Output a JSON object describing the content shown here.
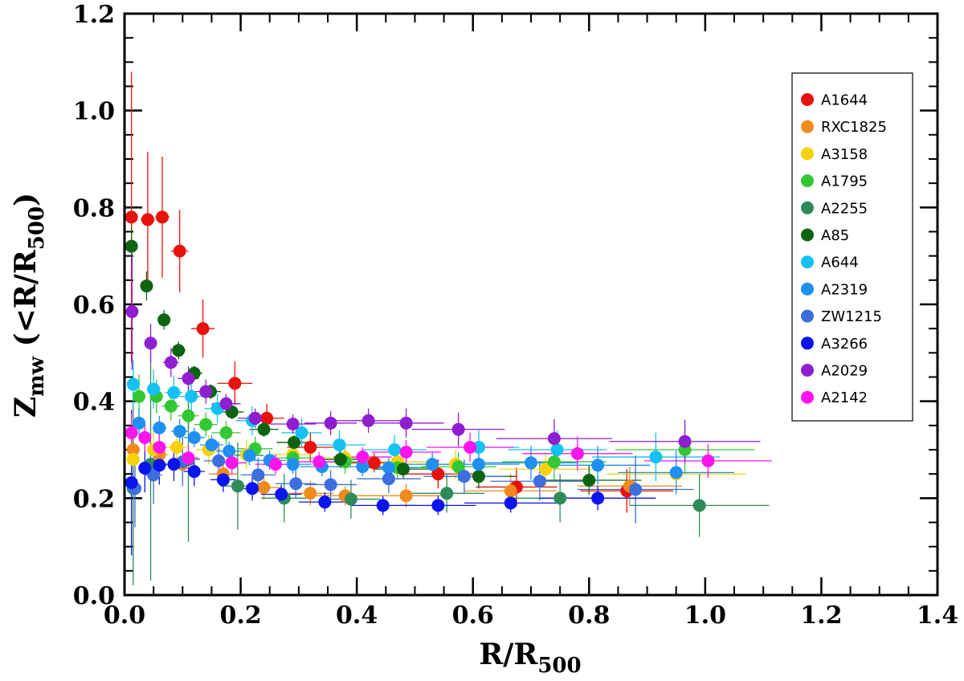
{
  "chart_data": {
    "type": "scatter",
    "xlabel": "R/R",
    "xlabel_sub": "500",
    "ylabel_main": "Z",
    "ylabel_sub": "mw",
    "ylabel_rest": " (<R/R",
    "ylabel_sub2": "500",
    "ylabel_close": ")",
    "xlim": [
      0.0,
      1.4
    ],
    "ylim": [
      0.0,
      1.2
    ],
    "xticks": [
      "0.0",
      "0.2",
      "0.4",
      "0.6",
      "0.8",
      "1.0",
      "1.2",
      "1.4"
    ],
    "yticks": [
      "0.0",
      "0.2",
      "0.4",
      "0.6",
      "0.8",
      "1.0",
      "1.2"
    ],
    "legend_position": "upper-right",
    "series": [
      {
        "name": "A1644",
        "color": "#e8120c",
        "points": [
          [
            0.012,
            0.78,
            0.008,
            0.3
          ],
          [
            0.04,
            0.775,
            0.012,
            0.14
          ],
          [
            0.065,
            0.78,
            0.012,
            0.125
          ],
          [
            0.095,
            0.71,
            0.015,
            0.085
          ],
          [
            0.135,
            0.55,
            0.02,
            0.06
          ],
          [
            0.19,
            0.437,
            0.03,
            0.045
          ],
          [
            0.245,
            0.365,
            0.03,
            0.03
          ],
          [
            0.32,
            0.305,
            0.04,
            0.03
          ],
          [
            0.43,
            0.273,
            0.05,
            0.02
          ],
          [
            0.54,
            0.25,
            0.06,
            0.03
          ],
          [
            0.675,
            0.223,
            0.07,
            0.04
          ],
          [
            0.865,
            0.215,
            0.08,
            0.045
          ]
        ]
      },
      {
        "name": "RXC1825",
        "color": "#f08a1c",
        "points": [
          [
            0.015,
            0.3,
            0.008,
            0.06
          ],
          [
            0.06,
            0.29,
            0.015,
            0.04
          ],
          [
            0.1,
            0.27,
            0.02,
            0.03
          ],
          [
            0.17,
            0.25,
            0.025,
            0.03
          ],
          [
            0.24,
            0.222,
            0.03,
            0.025
          ],
          [
            0.32,
            0.21,
            0.04,
            0.025
          ],
          [
            0.38,
            0.205,
            0.05,
            0.02
          ],
          [
            0.485,
            0.205,
            0.06,
            0.025
          ],
          [
            0.665,
            0.215,
            0.08,
            0.035
          ],
          [
            0.87,
            0.225,
            0.09,
            0.04
          ]
        ]
      },
      {
        "name": "A3158",
        "color": "#f7d10a",
        "points": [
          [
            0.015,
            0.28,
            0.008,
            0.05
          ],
          [
            0.05,
            0.3,
            0.012,
            0.04
          ],
          [
            0.09,
            0.305,
            0.018,
            0.035
          ],
          [
            0.145,
            0.3,
            0.022,
            0.03
          ],
          [
            0.21,
            0.29,
            0.028,
            0.03
          ],
          [
            0.29,
            0.29,
            0.035,
            0.03
          ],
          [
            0.38,
            0.283,
            0.045,
            0.025
          ],
          [
            0.47,
            0.275,
            0.055,
            0.025
          ],
          [
            0.57,
            0.27,
            0.065,
            0.03
          ],
          [
            0.725,
            0.26,
            0.08,
            0.035
          ],
          [
            0.95,
            0.25,
            0.12,
            0.04
          ]
        ]
      },
      {
        "name": "A1795",
        "color": "#34c734",
        "points": [
          [
            0.025,
            0.41,
            0.01,
            0.045
          ],
          [
            0.055,
            0.41,
            0.012,
            0.035
          ],
          [
            0.08,
            0.39,
            0.015,
            0.03
          ],
          [
            0.11,
            0.37,
            0.018,
            0.025
          ],
          [
            0.14,
            0.352,
            0.02,
            0.025
          ],
          [
            0.175,
            0.335,
            0.025,
            0.025
          ],
          [
            0.225,
            0.302,
            0.03,
            0.025
          ],
          [
            0.29,
            0.283,
            0.035,
            0.025
          ],
          [
            0.38,
            0.275,
            0.045,
            0.025
          ],
          [
            0.47,
            0.263,
            0.055,
            0.025
          ],
          [
            0.575,
            0.265,
            0.065,
            0.03
          ],
          [
            0.74,
            0.275,
            0.09,
            0.04
          ],
          [
            0.965,
            0.3,
            0.12,
            0.05
          ]
        ]
      },
      {
        "name": "A2255",
        "color": "#2e8b57",
        "points": [
          [
            0.015,
            0.22,
            0.01,
            0.2
          ],
          [
            0.045,
            0.27,
            0.015,
            0.24
          ],
          [
            0.11,
            0.28,
            0.02,
            0.17
          ],
          [
            0.195,
            0.225,
            0.03,
            0.09
          ],
          [
            0.275,
            0.2,
            0.04,
            0.05
          ],
          [
            0.39,
            0.198,
            0.05,
            0.04
          ],
          [
            0.555,
            0.21,
            0.065,
            0.04
          ],
          [
            0.75,
            0.2,
            0.09,
            0.05
          ],
          [
            0.99,
            0.185,
            0.12,
            0.065
          ]
        ]
      },
      {
        "name": "A85",
        "color": "#0c6410",
        "points": [
          [
            0.012,
            0.72,
            0.006,
            0.04
          ],
          [
            0.038,
            0.638,
            0.01,
            0.03
          ],
          [
            0.068,
            0.568,
            0.01,
            0.02
          ],
          [
            0.093,
            0.505,
            0.012,
            0.018
          ],
          [
            0.12,
            0.458,
            0.014,
            0.015
          ],
          [
            0.148,
            0.42,
            0.018,
            0.015
          ],
          [
            0.185,
            0.378,
            0.02,
            0.015
          ],
          [
            0.24,
            0.342,
            0.025,
            0.015
          ],
          [
            0.292,
            0.315,
            0.03,
            0.015
          ],
          [
            0.372,
            0.28,
            0.04,
            0.018
          ],
          [
            0.48,
            0.26,
            0.05,
            0.02
          ],
          [
            0.61,
            0.245,
            0.065,
            0.025
          ],
          [
            0.8,
            0.237,
            0.09,
            0.03
          ]
        ]
      },
      {
        "name": "A644",
        "color": "#14c1f2",
        "points": [
          [
            0.015,
            0.435,
            0.008,
            0.05
          ],
          [
            0.05,
            0.425,
            0.012,
            0.04
          ],
          [
            0.085,
            0.418,
            0.015,
            0.035
          ],
          [
            0.115,
            0.41,
            0.02,
            0.03
          ],
          [
            0.16,
            0.385,
            0.022,
            0.03
          ],
          [
            0.22,
            0.36,
            0.028,
            0.03
          ],
          [
            0.305,
            0.335,
            0.035,
            0.03
          ],
          [
            0.37,
            0.31,
            0.045,
            0.03
          ],
          [
            0.465,
            0.3,
            0.055,
            0.03
          ],
          [
            0.61,
            0.305,
            0.07,
            0.035
          ],
          [
            0.745,
            0.3,
            0.085,
            0.04
          ],
          [
            0.915,
            0.285,
            0.11,
            0.05
          ]
        ]
      },
      {
        "name": "A2319",
        "color": "#1f8ff2",
        "points": [
          [
            0.025,
            0.355,
            0.01,
            0.03
          ],
          [
            0.06,
            0.345,
            0.012,
            0.025
          ],
          [
            0.095,
            0.338,
            0.015,
            0.025
          ],
          [
            0.12,
            0.325,
            0.018,
            0.02
          ],
          [
            0.15,
            0.31,
            0.02,
            0.02
          ],
          [
            0.18,
            0.297,
            0.022,
            0.02
          ],
          [
            0.215,
            0.288,
            0.025,
            0.02
          ],
          [
            0.25,
            0.278,
            0.028,
            0.02
          ],
          [
            0.29,
            0.27,
            0.032,
            0.02
          ],
          [
            0.34,
            0.265,
            0.038,
            0.02
          ],
          [
            0.41,
            0.265,
            0.045,
            0.02
          ],
          [
            0.455,
            0.263,
            0.05,
            0.02
          ],
          [
            0.53,
            0.27,
            0.06,
            0.025
          ],
          [
            0.61,
            0.27,
            0.07,
            0.03
          ],
          [
            0.7,
            0.273,
            0.08,
            0.035
          ],
          [
            0.815,
            0.268,
            0.09,
            0.04
          ],
          [
            0.95,
            0.253,
            0.1,
            0.045
          ]
        ]
      },
      {
        "name": "ZW1215",
        "color": "#3d6ede",
        "points": [
          [
            0.018,
            0.22,
            0.01,
            0.08
          ],
          [
            0.05,
            0.248,
            0.015,
            0.06
          ],
          [
            0.1,
            0.275,
            0.02,
            0.05
          ],
          [
            0.162,
            0.277,
            0.025,
            0.04
          ],
          [
            0.23,
            0.248,
            0.03,
            0.035
          ],
          [
            0.295,
            0.23,
            0.035,
            0.03
          ],
          [
            0.355,
            0.228,
            0.045,
            0.03
          ],
          [
            0.455,
            0.24,
            0.055,
            0.03
          ],
          [
            0.585,
            0.245,
            0.07,
            0.035
          ],
          [
            0.715,
            0.235,
            0.085,
            0.04
          ],
          [
            0.88,
            0.218,
            0.1,
            0.07
          ]
        ]
      },
      {
        "name": "A3266",
        "color": "#0a14ee",
        "points": [
          [
            0.012,
            0.232,
            0.006,
            0.15
          ],
          [
            0.035,
            0.262,
            0.01,
            0.05
          ],
          [
            0.06,
            0.268,
            0.012,
            0.04
          ],
          [
            0.085,
            0.27,
            0.015,
            0.035
          ],
          [
            0.12,
            0.255,
            0.018,
            0.03
          ],
          [
            0.17,
            0.238,
            0.022,
            0.025
          ],
          [
            0.22,
            0.22,
            0.028,
            0.025
          ],
          [
            0.27,
            0.208,
            0.035,
            0.02
          ],
          [
            0.345,
            0.192,
            0.045,
            0.02
          ],
          [
            0.445,
            0.185,
            0.055,
            0.02
          ],
          [
            0.54,
            0.185,
            0.065,
            0.02
          ],
          [
            0.665,
            0.19,
            0.08,
            0.02
          ],
          [
            0.815,
            0.2,
            0.1,
            0.025
          ]
        ]
      },
      {
        "name": "A2029",
        "color": "#8f1ed0",
        "points": [
          [
            0.013,
            0.585,
            0.006,
            0.12
          ],
          [
            0.045,
            0.52,
            0.01,
            0.04
          ],
          [
            0.08,
            0.48,
            0.014,
            0.03
          ],
          [
            0.11,
            0.447,
            0.018,
            0.025
          ],
          [
            0.14,
            0.42,
            0.02,
            0.025
          ],
          [
            0.175,
            0.395,
            0.025,
            0.02
          ],
          [
            0.225,
            0.365,
            0.03,
            0.02
          ],
          [
            0.29,
            0.353,
            0.04,
            0.02
          ],
          [
            0.355,
            0.355,
            0.045,
            0.025
          ],
          [
            0.42,
            0.36,
            0.055,
            0.025
          ],
          [
            0.485,
            0.355,
            0.065,
            0.03
          ],
          [
            0.575,
            0.342,
            0.08,
            0.035
          ],
          [
            0.74,
            0.323,
            0.1,
            0.04
          ],
          [
            0.965,
            0.317,
            0.13,
            0.045
          ]
        ]
      },
      {
        "name": "A2142",
        "color": "#ff14ee",
        "points": [
          [
            0.012,
            0.335,
            0.006,
            0.04
          ],
          [
            0.035,
            0.325,
            0.01,
            0.03
          ],
          [
            0.06,
            0.305,
            0.012,
            0.03
          ],
          [
            0.11,
            0.283,
            0.018,
            0.025
          ],
          [
            0.185,
            0.273,
            0.025,
            0.025
          ],
          [
            0.26,
            0.27,
            0.035,
            0.02
          ],
          [
            0.335,
            0.275,
            0.04,
            0.02
          ],
          [
            0.41,
            0.285,
            0.05,
            0.02
          ],
          [
            0.485,
            0.295,
            0.06,
            0.025
          ],
          [
            0.595,
            0.305,
            0.075,
            0.03
          ],
          [
            0.78,
            0.292,
            0.095,
            0.035
          ],
          [
            1.005,
            0.277,
            0.11,
            0.035
          ]
        ]
      }
    ]
  }
}
